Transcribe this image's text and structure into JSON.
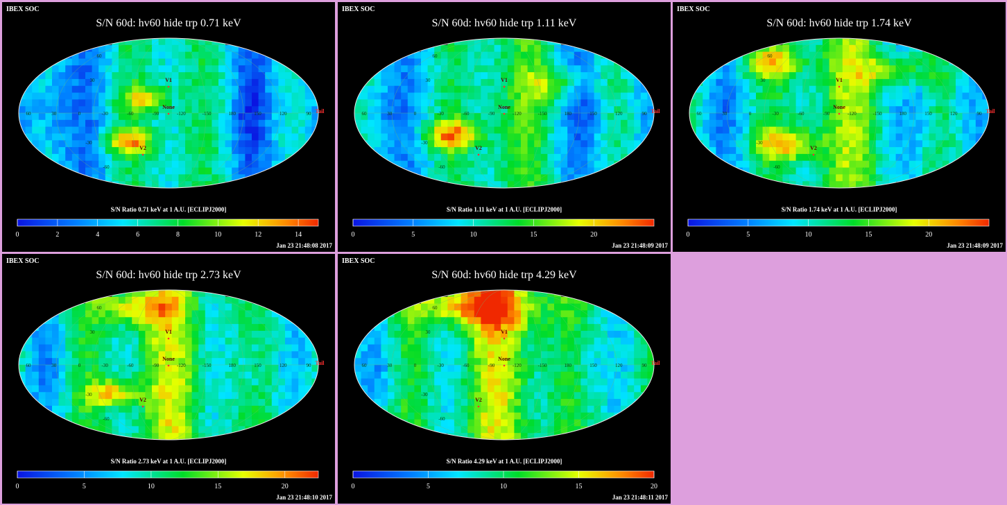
{
  "chart_data": [
    {
      "type": "heatmap",
      "projection": "mollweide",
      "header": "IBEX SOC",
      "title": "S/N  60d: hv60 hide trp 0.71 keV",
      "colorbar_label": "S/N Ratio 0.71 keV at 1 A.U. [ECLIPJ2000]",
      "colorbar_range": [
        0,
        15
      ],
      "colorbar_ticks": [
        "0",
        "2",
        "4",
        "6",
        "8",
        "10",
        "12",
        "14"
      ],
      "timestamp": "Jan 23 21:48:08 2017",
      "map_labels": [
        "V1",
        "V2",
        "None",
        "Tail"
      ],
      "longitude_labels": [
        "60",
        "30",
        "0",
        "-30",
        "-60",
        "-90",
        "-120",
        "-150",
        "180",
        "150",
        "120",
        "90"
      ],
      "latitude_labels": [
        "60",
        "30",
        "-30",
        "-60"
      ]
    },
    {
      "type": "heatmap",
      "projection": "mollweide",
      "header": "IBEX SOC",
      "title": "S/N  60d: hv60 hide trp 1.11 keV",
      "colorbar_label": "S/N Ratio 1.11 keV at 1 A.U. [ECLIPJ2000]",
      "colorbar_range": [
        0,
        25
      ],
      "colorbar_ticks": [
        "0",
        "5",
        "10",
        "15",
        "20"
      ],
      "timestamp": "Jan 23 21:48:09 2017",
      "map_labels": [
        "V1",
        "V2",
        "None",
        "Tail"
      ],
      "longitude_labels": [
        "60",
        "30",
        "0",
        "-30",
        "-60",
        "-90",
        "-120",
        "-150",
        "180",
        "150",
        "120",
        "90"
      ],
      "latitude_labels": [
        "60",
        "30",
        "-30",
        "-60"
      ]
    },
    {
      "type": "heatmap",
      "projection": "mollweide",
      "header": "IBEX SOC",
      "title": "S/N  60d: hv60 hide trp 1.74 keV",
      "colorbar_label": "S/N Ratio 1.74 keV at 1 A.U. [ECLIPJ2000]",
      "colorbar_range": [
        0,
        25
      ],
      "colorbar_ticks": [
        "0",
        "5",
        "10",
        "15",
        "20"
      ],
      "timestamp": "Jan 23 21:48:09 2017",
      "map_labels": [
        "V1",
        "V2",
        "None",
        "Tail"
      ],
      "longitude_labels": [
        "60",
        "30",
        "0",
        "-30",
        "-60",
        "-90",
        "-120",
        "-150",
        "180",
        "150",
        "120",
        "90"
      ],
      "latitude_labels": [
        "60",
        "30",
        "-30",
        "-60"
      ]
    },
    {
      "type": "heatmap",
      "projection": "mollweide",
      "header": "IBEX SOC",
      "title": "S/N  60d: hv60 hide trp 2.73 keV",
      "colorbar_label": "S/N Ratio 2.73 keV at 1 A.U. [ECLIPJ2000]",
      "colorbar_range": [
        0,
        22.5
      ],
      "colorbar_ticks": [
        "0",
        "5",
        "10",
        "15",
        "20"
      ],
      "timestamp": "Jan 23 21:48:10 2017",
      "map_labels": [
        "V1",
        "V2",
        "None",
        "Tail"
      ],
      "longitude_labels": [
        "60",
        "30",
        "0",
        "-30",
        "-60",
        "-90",
        "-120",
        "-150",
        "180",
        "150",
        "120",
        "90"
      ],
      "latitude_labels": [
        "60",
        "30",
        "-30",
        "-60"
      ]
    },
    {
      "type": "heatmap",
      "projection": "mollweide",
      "header": "IBEX SOC",
      "title": "S/N  60d: hv60 hide trp 4.29 keV",
      "colorbar_label": "S/N Ratio 4.29 keV at 1 A.U. [ECLIPJ2000]",
      "colorbar_range": [
        0,
        20
      ],
      "colorbar_ticks": [
        "0",
        "5",
        "10",
        "15",
        "20"
      ],
      "timestamp": "Jan 23 21:48:11 2017",
      "map_labels": [
        "V1",
        "V2",
        "None",
        "Tail"
      ],
      "longitude_labels": [
        "60",
        "30",
        "0",
        "-30",
        "-60",
        "-90",
        "-120",
        "-150",
        "180",
        "150",
        "120",
        "90"
      ],
      "latitude_labels": [
        "60",
        "30",
        "-30",
        "-60"
      ]
    }
  ],
  "colors": {
    "background": "#dd9fdd",
    "panel": "#000000",
    "marker": "#ff3030",
    "tail_label": "#ff3030"
  }
}
